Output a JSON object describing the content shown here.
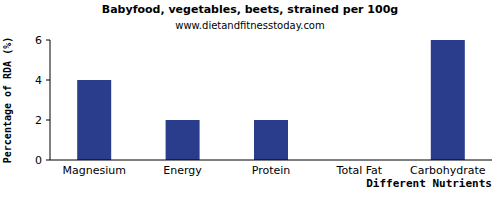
{
  "chart_data": {
    "type": "bar",
    "title": "Babyfood, vegetables, beets, strained per 100g",
    "subtitle": "www.dietandfitnesstoday.com",
    "x_label": "Different Nutrients",
    "y_label": "Percentage of RDA (%)",
    "categories": [
      "Magnesium",
      "Energy",
      "Protein",
      "Total Fat",
      "Carbohydrate"
    ],
    "values": [
      4,
      2,
      2,
      0,
      6
    ],
    "color": "#293d8c",
    "ylim": [
      0,
      6
    ],
    "yticks": [
      0,
      2,
      4,
      6
    ],
    "grid": false
  }
}
